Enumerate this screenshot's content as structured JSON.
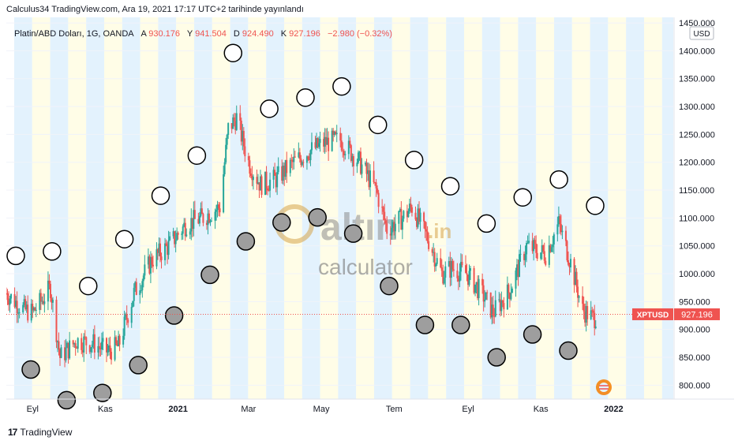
{
  "header": {
    "publish_line": "Calculus34 TradingView.com, Ara 19, 2021 17:17 UTC+2 tarihinde yayınlandı"
  },
  "legend": {
    "symbol": "Platin/ABD Doları, 1G, OANDA",
    "open_label": "A",
    "open": "930.176",
    "high_label": "Y",
    "high": "941.504",
    "low_label": "D",
    "low": "924.490",
    "close_label": "K",
    "close": "927.196",
    "change": "−2.980 (−0.32%)"
  },
  "price_axis": {
    "currency": "USD",
    "last_label": "XPTUSD",
    "last_value": "927.196"
  },
  "watermark": {
    "brand": "altın",
    "suffix": ".in",
    "sub": "calculator"
  },
  "footer": {
    "brand": "TradingView"
  },
  "colors": {
    "up": "#26a69a",
    "down": "#ef5350",
    "band_blue": "#e3f2fd",
    "band_yellow": "#fffde7",
    "last_price": "#ef5350",
    "grid": "#f0f3fa"
  },
  "chart_data": {
    "type": "candlestick",
    "title": "Platin/ABD Doları, 1G, OANDA",
    "x_tick_labels": [
      "Eyl",
      "Kas",
      "2021",
      "Mar",
      "May",
      "Tem",
      "Eyl",
      "Kas",
      "2022"
    ],
    "y_tick_labels": [
      "800.000",
      "850.000",
      "900.000",
      "950.000",
      "1000.000",
      "1050.000",
      "1100.000",
      "1150.000",
      "1200.000",
      "1250.000",
      "1300.000",
      "1350.000",
      "1400.000",
      "1450.000"
    ],
    "ylim": [
      775,
      1460
    ],
    "x_range": [
      "2020-08-10",
      "2022-02-20"
    ],
    "last_price": 927.196,
    "trend": [
      {
        "date": "2020-08-10",
        "close": 965
      },
      {
        "date": "2020-08-25",
        "close": 935
      },
      {
        "date": "2020-09-01",
        "close": 930
      },
      {
        "date": "2020-09-08",
        "close": 950
      },
      {
        "date": "2020-09-16",
        "close": 975
      },
      {
        "date": "2020-09-24",
        "close": 850
      },
      {
        "date": "2020-10-08",
        "close": 880
      },
      {
        "date": "2020-10-22",
        "close": 875
      },
      {
        "date": "2020-11-03",
        "close": 860
      },
      {
        "date": "2020-11-12",
        "close": 870
      },
      {
        "date": "2020-11-25",
        "close": 965
      },
      {
        "date": "2020-12-10",
        "close": 1025
      },
      {
        "date": "2020-12-24",
        "close": 1050
      },
      {
        "date": "2021-01-08",
        "close": 1090
      },
      {
        "date": "2021-01-21",
        "close": 1100
      },
      {
        "date": "2021-02-05",
        "close": 1120
      },
      {
        "date": "2021-02-12",
        "close": 1260
      },
      {
        "date": "2021-02-19",
        "close": 1280
      },
      {
        "date": "2021-03-01",
        "close": 1200
      },
      {
        "date": "2021-03-11",
        "close": 1160
      },
      {
        "date": "2021-03-24",
        "close": 1170
      },
      {
        "date": "2021-04-08",
        "close": 1200
      },
      {
        "date": "2021-04-21",
        "close": 1220
      },
      {
        "date": "2021-05-04",
        "close": 1235
      },
      {
        "date": "2021-05-17",
        "close": 1240
      },
      {
        "date": "2021-06-02",
        "close": 1200
      },
      {
        "date": "2021-06-16",
        "close": 1150
      },
      {
        "date": "2021-06-25",
        "close": 1080
      },
      {
        "date": "2021-07-08",
        "close": 1100
      },
      {
        "date": "2021-07-16",
        "close": 1120
      },
      {
        "date": "2021-07-30",
        "close": 1060
      },
      {
        "date": "2021-08-10",
        "close": 1000
      },
      {
        "date": "2021-08-18",
        "close": 1010
      },
      {
        "date": "2021-08-31",
        "close": 1000
      },
      {
        "date": "2021-09-14",
        "close": 960
      },
      {
        "date": "2021-09-22",
        "close": 930
      },
      {
        "date": "2021-10-06",
        "close": 970
      },
      {
        "date": "2021-10-20",
        "close": 1050
      },
      {
        "date": "2021-11-05",
        "close": 1035
      },
      {
        "date": "2021-11-16",
        "close": 1090
      },
      {
        "date": "2021-11-26",
        "close": 1020
      },
      {
        "date": "2021-12-06",
        "close": 935
      },
      {
        "date": "2021-12-15",
        "close": 920
      },
      {
        "date": "2021-12-19",
        "close": 927.196
      }
    ],
    "white_circles": [
      1032,
      1040,
      978,
      1062,
      1140,
      1212,
      1396,
      1296,
      1316,
      1336,
      1267,
      1204,
      1157,
      1090,
      1137,
      1169,
      1122
    ],
    "gray_circles": [
      828,
      773,
      786,
      836,
      925,
      998,
      1058,
      1092,
      1101,
      1072,
      978,
      908,
      908,
      850,
      891,
      862
    ]
  }
}
